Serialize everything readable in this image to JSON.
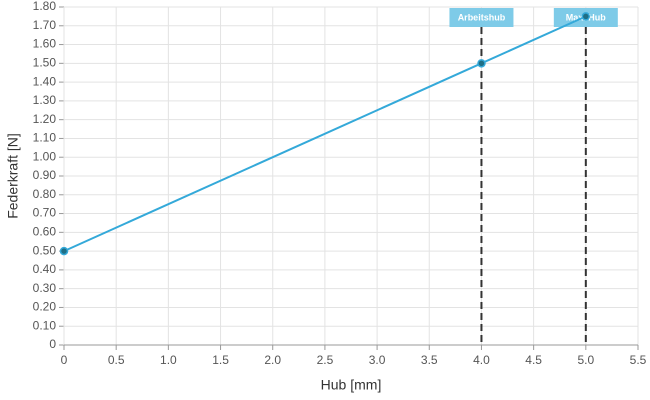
{
  "chart_data": {
    "type": "line",
    "x_label": "Hub [mm]",
    "y_label": "Federkraft [N]",
    "x": [
      0,
      4,
      5
    ],
    "series": [
      {
        "color": "#34a9d9",
        "marker_color": "#1f6f86",
        "values": [
          0.5,
          1.5,
          1.75
        ]
      }
    ],
    "annotations": [
      {
        "x": 4,
        "label": "Arbeitshub"
      },
      {
        "x": 5,
        "label": "Max. Hub"
      }
    ],
    "annotation_color": "#7ecbe8",
    "xlim": [
      0,
      5.5
    ],
    "xticks": [
      0,
      0.5,
      {
        "value": 1,
        "label": "1.0"
      },
      1.5,
      {
        "value": 2,
        "label": "2.0"
      },
      2.5,
      {
        "value": 3,
        "label": "3.0"
      },
      3.5,
      {
        "value": 4,
        "label": "4.0"
      },
      4.5,
      {
        "value": 5,
        "label": "5.0"
      },
      5.5
    ],
    "ylim": [
      0,
      1.8
    ],
    "yticks": [
      0,
      {
        "value": 0.1,
        "label": "0.10"
      },
      {
        "value": 0.2,
        "label": "0.20"
      },
      {
        "value": 0.3,
        "label": "0.30"
      },
      {
        "value": 0.4,
        "label": "0.40"
      },
      {
        "value": 0.5,
        "label": "0.50"
      },
      {
        "value": 0.6,
        "label": "0.60"
      },
      {
        "value": 0.7,
        "label": "0.70"
      },
      {
        "value": 0.8,
        "label": "0.80"
      },
      {
        "value": 0.9,
        "label": "0.90"
      },
      {
        "value": 1,
        "label": "1.00"
      },
      {
        "value": 1.1,
        "label": "1.10"
      },
      {
        "value": 1.2,
        "label": "1.20"
      },
      {
        "value": 1.3,
        "label": "1.30"
      },
      {
        "value": 1.4,
        "label": "1.40"
      },
      {
        "value": 1.5,
        "label": "1.50"
      },
      {
        "value": 1.6,
        "label": "1.60"
      },
      {
        "value": 1.7,
        "label": "1.70"
      },
      {
        "value": 1.8,
        "label": "1.80"
      }
    ],
    "grid": true
  }
}
